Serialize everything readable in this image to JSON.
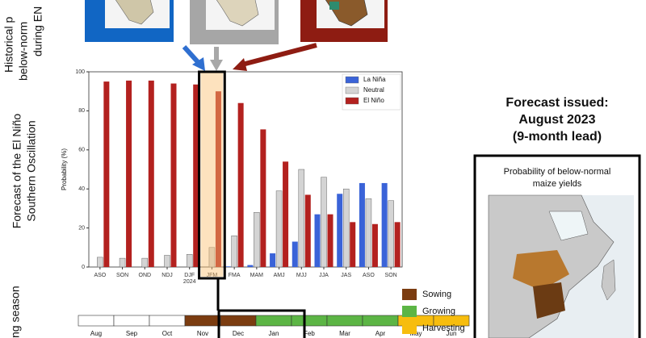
{
  "chart_data": {
    "type": "bar",
    "y_label": "Probability (%)",
    "categories": [
      "ASO",
      "SON",
      "OND",
      "NDJ",
      "DJF",
      "JFM",
      "FMA",
      "MAM",
      "AMJ",
      "MJJ",
      "JJA",
      "JAS",
      "ASO",
      "SON"
    ],
    "category_sublabels": [
      null,
      null,
      null,
      null,
      "2024",
      null,
      null,
      null,
      null,
      null,
      null,
      null,
      null,
      null
    ],
    "series": [
      {
        "name": "La Niña",
        "color": "#3a63d8",
        "values": [
          0,
          0,
          0,
          0,
          0,
          0,
          0.3,
          1,
          7,
          13,
          27,
          37.5,
          43,
          43
        ]
      },
      {
        "name": "Neutral",
        "color": "#d4d4d4",
        "values": [
          5,
          4.5,
          4.5,
          6,
          6.5,
          10,
          16,
          28,
          39,
          50,
          46,
          40,
          35,
          34
        ]
      },
      {
        "name": "El Niño",
        "color": "#b3211f",
        "values": [
          95,
          95.5,
          95.5,
          94,
          93.5,
          90,
          84,
          70.5,
          54,
          37,
          27,
          23,
          22,
          23
        ]
      }
    ],
    "ylim": [
      0,
      100
    ],
    "yticks": [
      0,
      20,
      40,
      60,
      80,
      100
    ],
    "grid": false,
    "legend": "upper-right"
  },
  "side_labels": {
    "historical": [
      "Historical p",
      "below-norm",
      "during EN"
    ],
    "forecast": [
      "Forecast of the El Niño",
      "Southern Oscillation"
    ],
    "season": "ng season"
  },
  "calendar": {
    "months": [
      {
        "label": "Aug",
        "stage": null
      },
      {
        "label": "Sep",
        "stage": null
      },
      {
        "label": "Oct",
        "stage": null
      },
      {
        "label": "Nov",
        "stage": "Sowing"
      },
      {
        "label": "Dec",
        "stage": "Sowing"
      },
      {
        "label": "Jan",
        "stage": "Growing"
      },
      {
        "label": "Feb",
        "stage": "Growing"
      },
      {
        "label": "Mar",
        "stage": "Growing"
      },
      {
        "label": "Apr",
        "stage": "Growing"
      },
      {
        "label": "May",
        "stage": "Harvesting"
      },
      {
        "label": "Jun",
        "stage": "Harvesting"
      }
    ],
    "stages": [
      {
        "name": "Sowing",
        "color": "#7b3c10"
      },
      {
        "name": "Growing",
        "color": "#5cb545"
      },
      {
        "name": "Harvesting",
        "color": "#f7bd0e"
      }
    ]
  },
  "forecast_panel": {
    "title": [
      "Forecast issued:",
      "August 2023",
      "(9-month lead)"
    ],
    "map_title": [
      "Probability of below-normal",
      "maize yields"
    ]
  }
}
